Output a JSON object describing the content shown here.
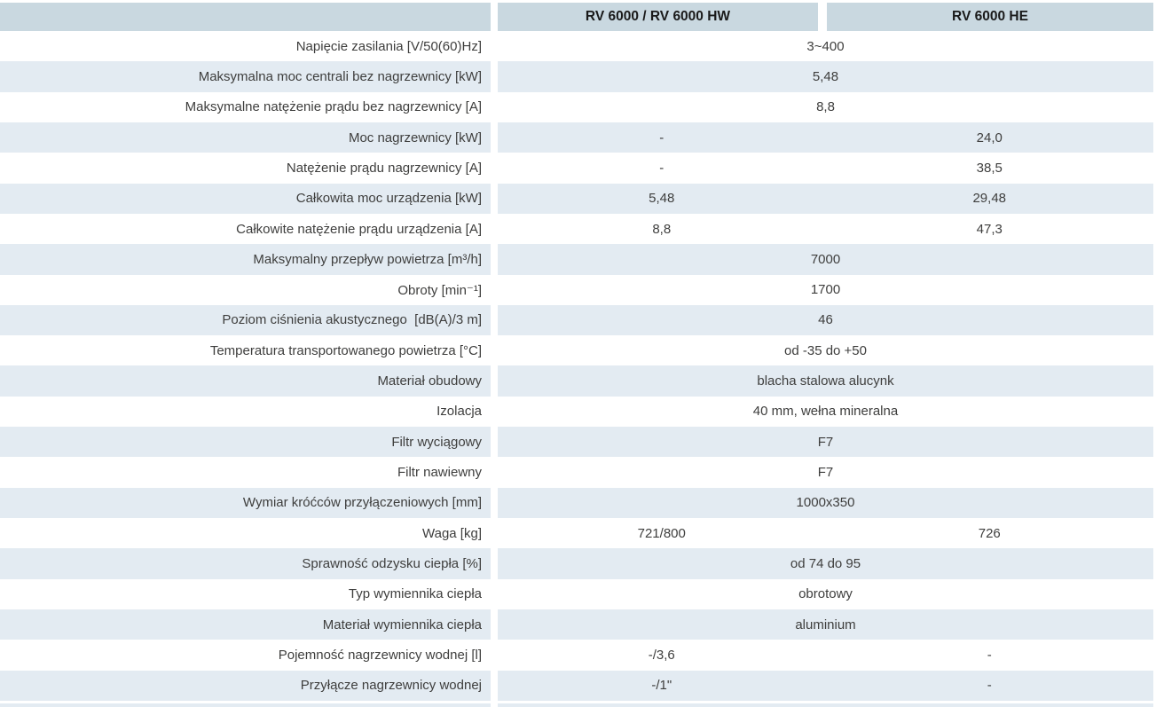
{
  "colors": {
    "header_bg": "#c9d8e0",
    "row_alt_bg": "#e3ebf2",
    "row_bg": "#ffffff",
    "label_text": "#3e3e3d",
    "header_text": "#1a1a1a"
  },
  "table": {
    "header": {
      "col1": "RV 6000 / RV 6000 HW",
      "col2": "RV 6000 HE"
    },
    "rows": [
      {
        "label": "Napięcie zasilania [V/50(60)Hz]",
        "span": "3~400"
      },
      {
        "label": "Maksymalna moc centrali bez nagrzewnicy [kW]",
        "span": "5,48"
      },
      {
        "label": "Maksymalne natężenie prądu bez nagrzewnicy [A]",
        "span": "8,8"
      },
      {
        "label": "Moc nagrzewnicy [kW]",
        "v1": "-",
        "v2": "24,0"
      },
      {
        "label": "Natężenie prądu nagrzewnicy [A]",
        "v1": "-",
        "v2": "38,5"
      },
      {
        "label": "Całkowita moc urządzenia [kW]",
        "v1": "5,48",
        "v2": "29,48"
      },
      {
        "label": "Całkowite natężenie prądu urządzenia [A]",
        "v1": "8,8",
        "v2": "47,3"
      },
      {
        "label": "Maksymalny przepływ powietrza [m³/h]",
        "span": "7000"
      },
      {
        "label": "Obroty [min⁻¹]",
        "span": "1700"
      },
      {
        "label": "Poziom ciśnienia akustycznego  [dB(A)/3 m]",
        "span": "46"
      },
      {
        "label": "Temperatura transportowanego powietrza [°C]",
        "span": "od -35 do +50"
      },
      {
        "label": "Materiał obudowy",
        "span": "blacha stalowa alucynk"
      },
      {
        "label": "Izolacja",
        "span": "40 mm, wełna mineralna"
      },
      {
        "label": "Filtr wyciągowy",
        "span": "F7"
      },
      {
        "label": "Filtr nawiewny",
        "span": "F7"
      },
      {
        "label": "Wymiar króćców przyłączeniowych [mm]",
        "span": "1000x350"
      },
      {
        "label": "Waga [kg]",
        "v1": "721/800",
        "v2": "726"
      },
      {
        "label": "Sprawność odzysku ciepła [%]",
        "span": "od 74 do 95"
      },
      {
        "label": "Typ wymiennika ciepła",
        "span": "obrotowy"
      },
      {
        "label": "Materiał wymiennika ciepła",
        "span": "aluminium"
      },
      {
        "label": "Pojemność nagrzewnicy wodnej [l]",
        "v1": "-/3,6",
        "v2": "-"
      },
      {
        "label": "Przyłącze nagrzewnicy wodnej",
        "v1": "-/1\"",
        "v2": "-"
      }
    ]
  }
}
